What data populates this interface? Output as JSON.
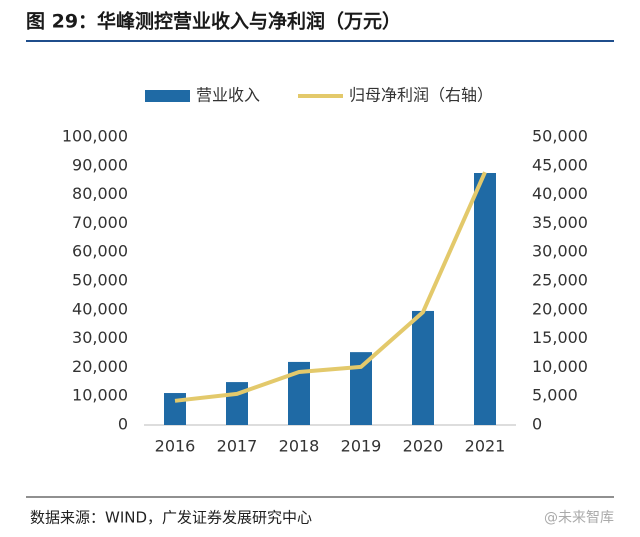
{
  "chart_data": {
    "type": "bar",
    "title": "图 29：华峰测控营业收入与净利润（万元）",
    "categories": [
      "2016",
      "2017",
      "2018",
      "2019",
      "2020",
      "2021"
    ],
    "series": [
      {
        "name": "营业收入",
        "type": "bar",
        "color": "#1f6aa5",
        "values": [
          11100,
          14900,
          21900,
          25300,
          39600,
          87500
        ]
      },
      {
        "name": "归母净利润（右轴）",
        "type": "line",
        "axis": "y2",
        "color": "#e3c96b",
        "values": [
          4200,
          5400,
          9200,
          10100,
          19600,
          43900
        ]
      }
    ],
    "ylim": [
      0,
      100000
    ],
    "yticks": [
      0,
      {
        "value": 10000,
        "label": "10,000"
      },
      {
        "value": 20000,
        "label": "20,000"
      },
      {
        "value": 30000,
        "label": "30,000"
      },
      {
        "value": 40000,
        "label": "40,000"
      },
      {
        "value": 50000,
        "label": "50,000"
      },
      {
        "value": 60000,
        "label": "60,000"
      },
      {
        "value": 70000,
        "label": "70,000"
      },
      {
        "value": 80000,
        "label": "80,000"
      },
      {
        "value": 90000,
        "label": "90,000"
      },
      {
        "value": 100000,
        "label": "100,000"
      }
    ],
    "y2lim": [
      0,
      50000
    ],
    "y2ticks": [
      0,
      {
        "value": 5000,
        "label": "5,000"
      },
      {
        "value": 10000,
        "label": "10,000"
      },
      {
        "value": 15000,
        "label": "15,000"
      },
      {
        "value": 20000,
        "label": "20,000"
      },
      {
        "value": 25000,
        "label": "25,000"
      },
      {
        "value": 30000,
        "label": "30,000"
      },
      {
        "value": 35000,
        "label": "35,000"
      },
      {
        "value": 40000,
        "label": "40,000"
      },
      {
        "value": 45000,
        "label": "45,000"
      },
      {
        "value": 50000,
        "label": "50,000"
      }
    ],
    "grid": false,
    "source": "数据来源：WIND，广发证券发展研究中心",
    "watermark": "@未来智库"
  }
}
